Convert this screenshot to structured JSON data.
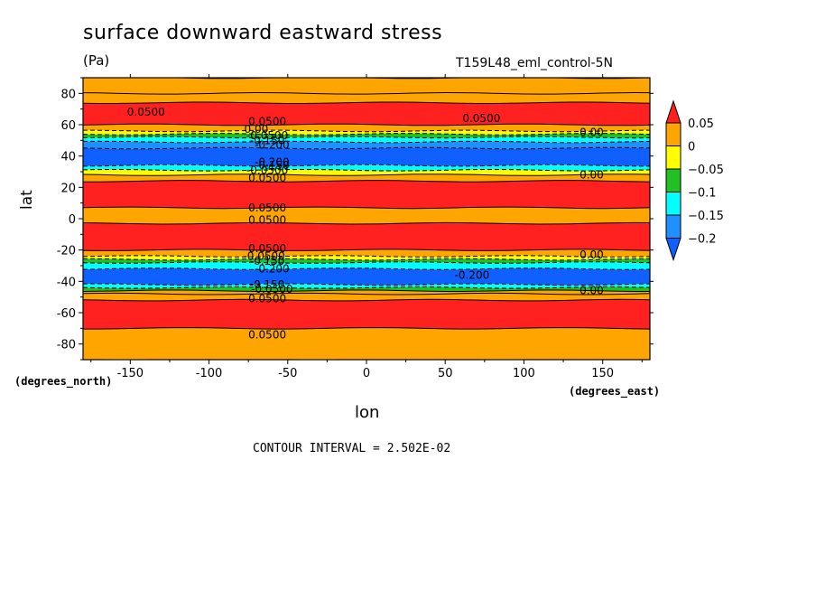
{
  "chart_data": {
    "type": "heatmap",
    "title": "surface downward eastward stress",
    "units": "(Pa)",
    "dataset_label": "T159L48_eml_control-5N",
    "xlabel": "lon",
    "ylabel": "lat",
    "x_units": "(degrees_east)",
    "y_units": "(degrees_north)",
    "xlim": [
      -180,
      180
    ],
    "ylim": [
      -90,
      90
    ],
    "x_ticks": [
      -150,
      -100,
      -50,
      0,
      50,
      100,
      150
    ],
    "y_ticks": [
      -80,
      -60,
      -40,
      -20,
      0,
      20,
      40,
      60,
      80
    ],
    "contour_interval_text": "CONTOUR INTERVAL = 2.502E-02",
    "colorbar": {
      "levels": [
        0.05,
        0,
        -0.05,
        -0.1,
        -0.15,
        -0.2
      ],
      "tick_labels": [
        "0.05",
        "0",
        "−0.05",
        "−0.1",
        "−0.15",
        "−0.2"
      ],
      "colors": [
        "#ff2020",
        "#ffa500",
        "#ffff00",
        "#22c022",
        "#00ffff",
        "#1e90ff",
        "#1060ff"
      ]
    },
    "latitude_bands": [
      {
        "lat": [
          80,
          90
        ],
        "value": 0.01
      },
      {
        "lat": [
          74,
          80
        ],
        "value": 0.02
      },
      {
        "lat": [
          60,
          74
        ],
        "value": 0.06
      },
      {
        "lat": [
          56,
          60
        ],
        "value": 0.02
      },
      {
        "lat": [
          54,
          56
        ],
        "value": -0.01
      },
      {
        "lat": [
          52,
          54
        ],
        "value": -0.06
      },
      {
        "lat": [
          49,
          52
        ],
        "value": -0.12
      },
      {
        "lat": [
          45,
          49
        ],
        "value": -0.17
      },
      {
        "lat": [
          34,
          45
        ],
        "value": -0.21
      },
      {
        "lat": [
          31,
          34
        ],
        "value": -0.12
      },
      {
        "lat": [
          28,
          31
        ],
        "value": -0.03
      },
      {
        "lat": [
          24,
          28
        ],
        "value": 0.02
      },
      {
        "lat": [
          7,
          24
        ],
        "value": 0.07
      },
      {
        "lat": [
          -3,
          7
        ],
        "value": 0.02
      },
      {
        "lat": [
          -20,
          -3
        ],
        "value": 0.07
      },
      {
        "lat": [
          -24,
          -20
        ],
        "value": 0.02
      },
      {
        "lat": [
          -26,
          -24
        ],
        "value": -0.03
      },
      {
        "lat": [
          -28,
          -26
        ],
        "value": -0.08
      },
      {
        "lat": [
          -32,
          -28
        ],
        "value": -0.14
      },
      {
        "lat": [
          -42,
          -32
        ],
        "value": -0.21
      },
      {
        "lat": [
          -44,
          -42
        ],
        "value": -0.14
      },
      {
        "lat": [
          -46,
          -44
        ],
        "value": -0.06
      },
      {
        "lat": [
          -48,
          -46
        ],
        "value": 0.0
      },
      {
        "lat": [
          -52,
          -48
        ],
        "value": 0.03
      },
      {
        "lat": [
          -70,
          -52
        ],
        "value": 0.07
      },
      {
        "lat": [
          -90,
          -70
        ],
        "value": 0.03
      }
    ],
    "contour_labels": [
      {
        "text": "0.0500",
        "lon": -140,
        "lat": 68
      },
      {
        "text": "0.0500",
        "lon": -63,
        "lat": 62
      },
      {
        "text": "0.0500",
        "lon": 73,
        "lat": 64
      },
      {
        "text": "0.00",
        "lon": 143,
        "lat": 55
      },
      {
        "text": "0.00",
        "lon": -70,
        "lat": 57
      },
      {
        "text": "-0.0500",
        "lon": -63,
        "lat": 53
      },
      {
        "text": "-0.150",
        "lon": -63,
        "lat": 50
      },
      {
        "text": "-0.200",
        "lon": -60,
        "lat": 47
      },
      {
        "text": "-0.200",
        "lon": -60,
        "lat": 36
      },
      {
        "text": "-0.150",
        "lon": -60,
        "lat": 34
      },
      {
        "text": "-0.0500",
        "lon": -63,
        "lat": 31
      },
      {
        "text": "0.0500",
        "lon": -63,
        "lat": 26
      },
      {
        "text": "0.00",
        "lon": 143,
        "lat": 28
      },
      {
        "text": "0.0500",
        "lon": -63,
        "lat": 7
      },
      {
        "text": "0.0500",
        "lon": -63,
        "lat": -1
      },
      {
        "text": "0.0500",
        "lon": -63,
        "lat": -19
      },
      {
        "text": "0.00",
        "lon": 143,
        "lat": -23
      },
      {
        "text": "-0.0500",
        "lon": -65,
        "lat": -24
      },
      {
        "text": "-0.150",
        "lon": -63,
        "lat": -27
      },
      {
        "text": "-0.200",
        "lon": -60,
        "lat": -32
      },
      {
        "text": "-0.200",
        "lon": 67,
        "lat": -36
      },
      {
        "text": "-0.150",
        "lon": -63,
        "lat": -42
      },
      {
        "text": "-0.0500",
        "lon": -60,
        "lat": -45
      },
      {
        "text": "0.00",
        "lon": 143,
        "lat": -46
      },
      {
        "text": "0.0500",
        "lon": -63,
        "lat": -51
      },
      {
        "text": "0.0500",
        "lon": -63,
        "lat": -74
      }
    ]
  }
}
